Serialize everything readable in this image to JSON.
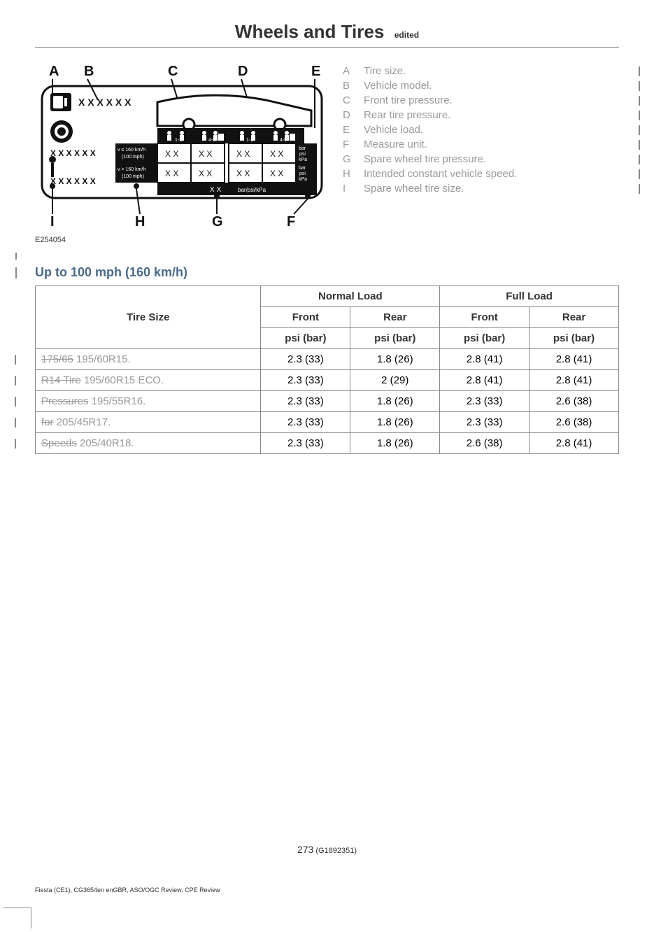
{
  "header": {
    "title": "Wheels and Tires",
    "sub": "edited"
  },
  "diagram": {
    "caption": "E254054",
    "labels_top": [
      "A",
      "B",
      "C",
      "D",
      "E"
    ],
    "labels_bottom_left": "I",
    "labels_bottom": [
      "H",
      "G",
      "F"
    ],
    "placeholder_x6": "X X X X X X",
    "placeholder_x6b": "X X X X X X",
    "placeholder_x6c": "X X X X X X",
    "speed1": "v ≤ 160 km/h\n(100 mph)",
    "speed2": "v > 160 km/h\n(100 mph)",
    "cell_xx": "X X",
    "unit_col": "bar\npsi\nkPa",
    "bottom_unit": "bar/psi/kPa",
    "bottom_xx": "X X"
  },
  "legend": [
    {
      "letter": "A",
      "text": "Tire size."
    },
    {
      "letter": "B",
      "text": "Vehicle model."
    },
    {
      "letter": "C",
      "text": "Front tire pressure."
    },
    {
      "letter": "D",
      "text": "Rear tire pressure."
    },
    {
      "letter": "E",
      "text": "Vehicle load."
    },
    {
      "letter": "F",
      "text": "Measure unit."
    },
    {
      "letter": "G",
      "text": "Spare wheel tire pressure."
    },
    {
      "letter": "H",
      "text": "Intended constant vehicle speed."
    },
    {
      "letter": "I",
      "text": "Spare wheel tire size."
    }
  ],
  "section": {
    "title": "Up to 100 mph (160 km/h)"
  },
  "table": {
    "head": {
      "tire_size": "Tire Size",
      "normal": "Normal Load",
      "full": "Full Load",
      "front": "Front",
      "rear": "Rear",
      "unit": "psi (bar)"
    },
    "rows": [
      {
        "strike": "175/65",
        "rest": " 195/60R15.",
        "nf": "2.3 (33)",
        "nr": "1.8 (26)",
        "ff": "2.8 (41)",
        "fr": "2.8 (41)"
      },
      {
        "strike": "R14 Tire",
        "rest": " 195/60R15 ECO.",
        "nf": "2.3 (33)",
        "nr": "2 (29)",
        "ff": "2.8 (41)",
        "fr": "2.8 (41)"
      },
      {
        "strike": "Pressures",
        "rest": " 195/55R16.",
        "nf": "2.3 (33)",
        "nr": "1.8 (26)",
        "ff": "2.3 (33)",
        "fr": "2.6 (38)"
      },
      {
        "strike": "for",
        "rest": " 205/45R17.",
        "nf": "2.3 (33)",
        "nr": "1.8 (26)",
        "ff": "2.3 (33)",
        "fr": "2.6 (38)"
      },
      {
        "strike": "Speeds",
        "rest": " 205/40R18.",
        "nf": "2.3 (33)",
        "nr": "1.8 (26)",
        "ff": "2.6 (38)",
        "fr": "2.8 (41)"
      }
    ]
  },
  "page_number": {
    "main": "273",
    "sub": " (G1892351)"
  },
  "footer": "Fiesta (CE1), CG3654en enGBR, ASO/OGC Review, CPE Review"
}
